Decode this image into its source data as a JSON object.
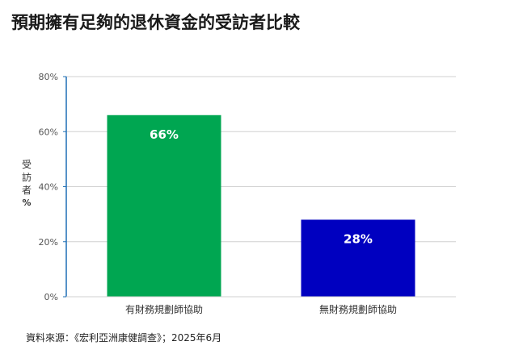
{
  "title": "預期擁有足夠的退休資金的受訪者比較",
  "source": "資料來源：《宏利亞洲康健調查》；2025年6月",
  "colors": {
    "bar_with_advisor": "#00a651",
    "bar_without_advisor": "#0000c0",
    "axis": "#1f6fb5",
    "grid": "#d0d0d0"
  },
  "chart_data": {
    "type": "bar",
    "categories": [
      "有財務規劃師協助",
      "無財務規劃師協助"
    ],
    "values": [
      66,
      28
    ],
    "data_labels": [
      "66%",
      "28%"
    ],
    "ylabel_chars": [
      "受",
      "訪",
      "者"
    ],
    "ylabel_unit": "%",
    "ylim": [
      0,
      80
    ],
    "yticks": [
      0,
      20,
      40,
      60,
      80
    ],
    "ytick_labels": [
      "0%",
      "20%",
      "40%",
      "60%",
      "80%"
    ],
    "grid": true,
    "legend": "none"
  }
}
